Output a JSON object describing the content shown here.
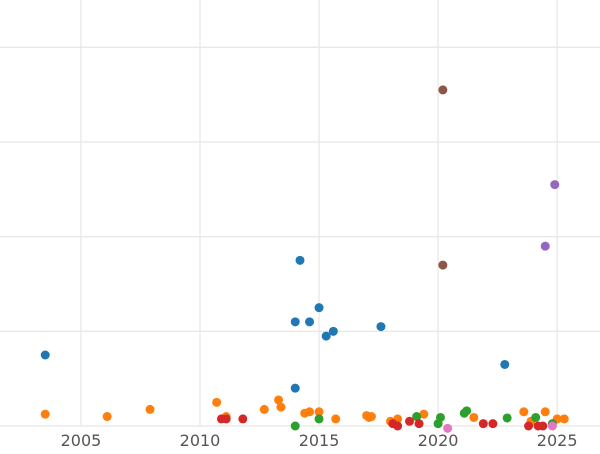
{
  "chart_data": {
    "type": "scatter",
    "title": "",
    "xlabel": "",
    "ylabel": "",
    "xlim": [
      2001.6,
      2026.8
    ],
    "ylim": [
      0,
      9
    ],
    "grid": true,
    "x_ticks": [
      2005,
      2010,
      2015,
      2020,
      2025
    ],
    "x_tick_labels": [
      "2005",
      "2010",
      "2015",
      "2020",
      "2025"
    ],
    "y_gridlines": [
      0,
      2,
      4,
      6,
      8
    ],
    "series": [
      {
        "color": "#1f77b4",
        "points": [
          [
            2003.5,
            1.5
          ],
          [
            2014.0,
            2.2
          ],
          [
            2014.2,
            3.5
          ],
          [
            2014.6,
            2.2
          ],
          [
            2015.0,
            2.5
          ],
          [
            2015.3,
            1.9
          ],
          [
            2015.6,
            2.0
          ],
          [
            2017.6,
            2.1
          ],
          [
            2014.0,
            0.8
          ],
          [
            2022.8,
            1.3
          ]
        ]
      },
      {
        "color": "#ff7f0e",
        "points": [
          [
            2003.5,
            0.25
          ],
          [
            2006.1,
            0.2
          ],
          [
            2007.9,
            0.35
          ],
          [
            2010.7,
            0.5
          ],
          [
            2011.1,
            0.2
          ],
          [
            2012.7,
            0.35
          ],
          [
            2013.3,
            0.55
          ],
          [
            2013.4,
            0.4
          ],
          [
            2014.4,
            0.27
          ],
          [
            2014.6,
            0.3
          ],
          [
            2015.0,
            0.3
          ],
          [
            2015.7,
            0.15
          ],
          [
            2017.0,
            0.22
          ],
          [
            2017.1,
            0.18
          ],
          [
            2017.2,
            0.2
          ],
          [
            2018.0,
            0.1
          ],
          [
            2018.3,
            0.15
          ],
          [
            2019.4,
            0.25
          ],
          [
            2021.5,
            0.18
          ],
          [
            2023.6,
            0.3
          ],
          [
            2023.9,
            0.1
          ],
          [
            2024.5,
            0.3
          ],
          [
            2025.0,
            0.15
          ],
          [
            2025.3,
            0.15
          ]
        ]
      },
      {
        "color": "#2ca02c",
        "points": [
          [
            2014.0,
            0.0
          ],
          [
            2015.0,
            0.15
          ],
          [
            2019.1,
            0.2
          ],
          [
            2020.1,
            0.18
          ],
          [
            2021.1,
            0.27
          ],
          [
            2021.2,
            0.32
          ],
          [
            2022.9,
            0.17
          ],
          [
            2024.1,
            0.18
          ],
          [
            2020.0,
            0.05
          ],
          [
            2024.8,
            0.05
          ]
        ]
      },
      {
        "color": "#d62728",
        "points": [
          [
            2010.9,
            0.15
          ],
          [
            2011.1,
            0.15
          ],
          [
            2011.8,
            0.15
          ],
          [
            2018.1,
            0.05
          ],
          [
            2018.3,
            0.0
          ],
          [
            2018.8,
            0.1
          ],
          [
            2019.2,
            0.05
          ],
          [
            2021.9,
            0.05
          ],
          [
            2022.3,
            0.05
          ],
          [
            2023.8,
            0.0
          ],
          [
            2024.2,
            0.0
          ],
          [
            2024.4,
            0.0
          ]
        ]
      },
      {
        "color": "#9467bd",
        "points": [
          [
            2024.5,
            3.8
          ],
          [
            2024.9,
            5.1
          ]
        ]
      },
      {
        "color": "#8c564b",
        "points": [
          [
            2020.2,
            7.1
          ],
          [
            2020.2,
            3.4
          ]
        ]
      },
      {
        "color": "#e377c2",
        "points": [
          [
            2020.4,
            -0.05
          ],
          [
            2024.8,
            0.0
          ]
        ]
      }
    ]
  }
}
